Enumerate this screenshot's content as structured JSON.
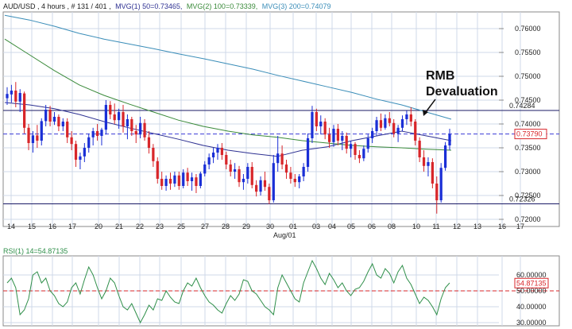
{
  "header": {
    "symbol_info": "AUD/USD , 4 hours , # 131 / 401 ,",
    "ma1": "MVG(1) 50=0.73465,",
    "ma2": "MVG(2) 100=0.73339,",
    "ma3": "MVG(3) 200=0.74079"
  },
  "colors": {
    "bull": "#1a2fd6",
    "bear": "#d8262a",
    "ma50": "#2e3192",
    "ma100": "#3a8a3a",
    "ma200": "#3a8db8",
    "rsi": "#2f8f4a",
    "level": "#1a1a66",
    "dashed_current": "#3a3ad8",
    "dashed_rsi": "#d8262a",
    "grid": "#cfd8e8",
    "axis_text": "#222222"
  },
  "annotation": {
    "line1": "RMB",
    "line2": "Devaluation"
  },
  "chart_data": [
    {
      "type": "candlestick",
      "title": "",
      "xlabel": "",
      "ylabel": "",
      "ylim": [
        0.7185,
        0.7635
      ],
      "grid": true,
      "y_ticks": [
        "0.72000",
        "0.72500",
        "0.73000",
        "0.73500",
        "0.74000",
        "0.74500",
        "0.75000",
        "0.75500",
        "0.76000"
      ],
      "x_tick_labels": [
        "14",
        "15",
        "16",
        "17",
        "20",
        "21",
        "22",
        "23",
        "25",
        "27",
        "28",
        "29",
        "30",
        "01",
        "03",
        "04",
        "05",
        "06",
        "08",
        "10",
        "11",
        "12",
        "13",
        "16",
        "17"
      ],
      "x_sub_label": "Aug/01",
      "levels": [
        {
          "value": 0.74284,
          "label": "0.74284"
        },
        {
          "value": 0.72326,
          "label": "0.72326"
        }
      ],
      "current_price": {
        "value": 0.7379,
        "label": "0.73790"
      },
      "candles": [
        [
          0.7454,
          0.7477,
          0.744,
          0.7463
        ],
        [
          0.7462,
          0.7482,
          0.7445,
          0.747
        ],
        [
          0.747,
          0.7488,
          0.7435,
          0.7447
        ],
        [
          0.7447,
          0.7473,
          0.7425,
          0.7465
        ],
        [
          0.7464,
          0.7468,
          0.738,
          0.7392
        ],
        [
          0.7392,
          0.74,
          0.7345,
          0.736
        ],
        [
          0.736,
          0.7385,
          0.734,
          0.7376
        ],
        [
          0.7376,
          0.7398,
          0.735,
          0.7365
        ],
        [
          0.7365,
          0.7412,
          0.7355,
          0.7406
        ],
        [
          0.7406,
          0.744,
          0.7395,
          0.743
        ],
        [
          0.743,
          0.7438,
          0.7395,
          0.7405
        ],
        [
          0.7405,
          0.7425,
          0.7398,
          0.7415
        ],
        [
          0.7415,
          0.742,
          0.7385,
          0.7395
        ],
        [
          0.7395,
          0.7412,
          0.7385,
          0.7405
        ],
        [
          0.7405,
          0.7412,
          0.736,
          0.7372
        ],
        [
          0.7372,
          0.7385,
          0.7345,
          0.7358
        ],
        [
          0.7358,
          0.7365,
          0.731,
          0.7325
        ],
        [
          0.7325,
          0.734,
          0.7305,
          0.7332
        ],
        [
          0.7332,
          0.736,
          0.732,
          0.735
        ],
        [
          0.735,
          0.738,
          0.734,
          0.7372
        ],
        [
          0.7372,
          0.7392,
          0.7355,
          0.7385
        ],
        [
          0.7385,
          0.74,
          0.7365,
          0.7375
        ],
        [
          0.7375,
          0.7392,
          0.7355,
          0.7388
        ],
        [
          0.7388,
          0.745,
          0.7378,
          0.744
        ],
        [
          0.744,
          0.7448,
          0.741,
          0.742
        ],
        [
          0.742,
          0.7443,
          0.74,
          0.7408
        ],
        [
          0.7408,
          0.7432,
          0.739,
          0.7425
        ],
        [
          0.7425,
          0.744,
          0.7382,
          0.7395
        ],
        [
          0.7395,
          0.742,
          0.7368,
          0.741
        ],
        [
          0.741,
          0.7415,
          0.7375,
          0.7385
        ],
        [
          0.7385,
          0.7398,
          0.736,
          0.7378
        ],
        [
          0.7378,
          0.7415,
          0.737,
          0.7402
        ],
        [
          0.7402,
          0.741,
          0.7365,
          0.7372
        ],
        [
          0.7372,
          0.7385,
          0.7338,
          0.735
        ],
        [
          0.735,
          0.7358,
          0.731,
          0.7322
        ],
        [
          0.7322,
          0.733,
          0.7275,
          0.7285
        ],
        [
          0.7285,
          0.73,
          0.7262,
          0.727
        ],
        [
          0.727,
          0.7292,
          0.726,
          0.7285
        ],
        [
          0.7285,
          0.7298,
          0.7262,
          0.7275
        ],
        [
          0.7275,
          0.73,
          0.7268,
          0.7292
        ],
        [
          0.7292,
          0.73,
          0.7262,
          0.727
        ],
        [
          0.727,
          0.7305,
          0.7265,
          0.7298
        ],
        [
          0.7298,
          0.7308,
          0.727,
          0.728
        ],
        [
          0.728,
          0.7298,
          0.726,
          0.7288
        ],
        [
          0.7288,
          0.7295,
          0.7255,
          0.727
        ],
        [
          0.727,
          0.73,
          0.7265,
          0.7296
        ],
        [
          0.7296,
          0.7322,
          0.729,
          0.7315
        ],
        [
          0.7315,
          0.7338,
          0.7305,
          0.733
        ],
        [
          0.733,
          0.735,
          0.7318,
          0.734
        ],
        [
          0.734,
          0.7358,
          0.7325,
          0.735
        ],
        [
          0.735,
          0.736,
          0.7325,
          0.7335
        ],
        [
          0.7335,
          0.7342,
          0.7305,
          0.7315
        ],
        [
          0.7315,
          0.7325,
          0.729,
          0.73
        ],
        [
          0.73,
          0.7318,
          0.7285,
          0.7305
        ],
        [
          0.7305,
          0.7312,
          0.7268,
          0.7278
        ],
        [
          0.7278,
          0.7295,
          0.7262,
          0.7285
        ],
        [
          0.7285,
          0.7318,
          0.7275,
          0.731
        ],
        [
          0.731,
          0.732,
          0.7265,
          0.7272
        ],
        [
          0.7272,
          0.7282,
          0.7248,
          0.7258
        ],
        [
          0.7258,
          0.729,
          0.725,
          0.7282
        ],
        [
          0.7282,
          0.73,
          0.726,
          0.7268
        ],
        [
          0.7268,
          0.7275,
          0.7232,
          0.724
        ],
        [
          0.724,
          0.7335,
          0.7235,
          0.7318
        ],
        [
          0.7318,
          0.7375,
          0.73,
          0.7338
        ],
        [
          0.7338,
          0.7355,
          0.7305,
          0.7315
        ],
        [
          0.7315,
          0.7325,
          0.7285,
          0.7298
        ],
        [
          0.7298,
          0.731,
          0.7275,
          0.7285
        ],
        [
          0.7285,
          0.7295,
          0.7268,
          0.7278
        ],
        [
          0.7278,
          0.7295,
          0.7265,
          0.729
        ],
        [
          0.729,
          0.7318,
          0.728,
          0.731
        ],
        [
          0.731,
          0.738,
          0.73,
          0.737
        ],
        [
          0.737,
          0.7438,
          0.736,
          0.7425
        ],
        [
          0.7425,
          0.7432,
          0.7385,
          0.7395
        ],
        [
          0.7395,
          0.7418,
          0.7378,
          0.7405
        ],
        [
          0.7405,
          0.7412,
          0.7368,
          0.7378
        ],
        [
          0.7378,
          0.7392,
          0.735,
          0.7362
        ],
        [
          0.7362,
          0.7398,
          0.7352,
          0.739
        ],
        [
          0.739,
          0.74,
          0.7355,
          0.7365
        ],
        [
          0.7365,
          0.7385,
          0.7345,
          0.7375
        ],
        [
          0.7375,
          0.7382,
          0.7338,
          0.7348
        ],
        [
          0.7348,
          0.7365,
          0.733,
          0.7358
        ],
        [
          0.7358,
          0.7362,
          0.7325,
          0.7335
        ],
        [
          0.7335,
          0.7345,
          0.7318,
          0.7328
        ],
        [
          0.7328,
          0.7355,
          0.7322,
          0.7348
        ],
        [
          0.7348,
          0.7378,
          0.734,
          0.737
        ],
        [
          0.737,
          0.7392,
          0.736,
          0.7385
        ],
        [
          0.7385,
          0.7415,
          0.7375,
          0.7408
        ],
        [
          0.7408,
          0.7422,
          0.7385,
          0.7392
        ],
        [
          0.7392,
          0.742,
          0.7388,
          0.7412
        ],
        [
          0.7412,
          0.7425,
          0.7395,
          0.7402
        ],
        [
          0.7402,
          0.741,
          0.7372,
          0.738
        ],
        [
          0.738,
          0.7398,
          0.7362,
          0.7392
        ],
        [
          0.7392,
          0.7418,
          0.7385,
          0.741
        ],
        [
          0.741,
          0.7428,
          0.7398,
          0.742
        ],
        [
          0.742,
          0.7435,
          0.7395,
          0.7405
        ],
        [
          0.7405,
          0.741,
          0.7355,
          0.7365
        ],
        [
          0.7365,
          0.7372,
          0.732,
          0.733
        ],
        [
          0.733,
          0.7345,
          0.73,
          0.7312
        ],
        [
          0.7312,
          0.733,
          0.729,
          0.732
        ],
        [
          0.732,
          0.7328,
          0.7265,
          0.7275
        ],
        [
          0.7275,
          0.729,
          0.7212,
          0.724
        ],
        [
          0.724,
          0.7318,
          0.7235,
          0.7308
        ],
        [
          0.7308,
          0.7362,
          0.7302,
          0.7355
        ],
        [
          0.7355,
          0.739,
          0.7345,
          0.7379
        ]
      ],
      "series": [
        {
          "name": "MVG(1) 50",
          "values": [
            0.7445,
            0.744,
            0.7432,
            0.742,
            0.7405,
            0.7392,
            0.738,
            0.7368,
            0.7355,
            0.7345,
            0.7338,
            0.7332,
            0.7345,
            0.7352,
            0.7365,
            0.7375,
            0.7385,
            0.7375,
            0.7365
          ]
        },
        {
          "name": "MVG(2) 100",
          "values": [
            0.7578,
            0.7545,
            0.7512,
            0.7482,
            0.746,
            0.7442,
            0.7425,
            0.7408,
            0.7395,
            0.7385,
            0.7377,
            0.7372,
            0.7365,
            0.736,
            0.7355,
            0.7352,
            0.735,
            0.7347,
            0.7345
          ]
        },
        {
          "name": "MVG(3) 200",
          "values": [
            0.7628,
            0.7618,
            0.7605,
            0.759,
            0.7578,
            0.7568,
            0.7558,
            0.7547,
            0.7537,
            0.7526,
            0.7515,
            0.7502,
            0.749,
            0.7478,
            0.7466,
            0.7452,
            0.744,
            0.7425,
            0.741
          ]
        }
      ]
    },
    {
      "type": "line",
      "title": "RSI(1) 14=54.87135",
      "ylim": [
        28,
        72
      ],
      "grid": true,
      "y_ticks": [
        "30.00000",
        "40.00000",
        "50.00000",
        "60.00000"
      ],
      "reference_line": 50,
      "current_value": {
        "value": 54.87135,
        "label": "54.87135"
      },
      "series": [
        {
          "name": "RSI(1) 14",
          "values": [
            55,
            58,
            52,
            35,
            38,
            45,
            60,
            62,
            55,
            58,
            50,
            47,
            42,
            40,
            43,
            52,
            55,
            48,
            57,
            65,
            60,
            52,
            45,
            50,
            58,
            55,
            47,
            40,
            38,
            42,
            36,
            30,
            35,
            41,
            38,
            45,
            44,
            50,
            46,
            43,
            42,
            50,
            55,
            53,
            58,
            52,
            47,
            43,
            41,
            38,
            36,
            42,
            47,
            44,
            48,
            57,
            56,
            50,
            48,
            44,
            40,
            38,
            35,
            52,
            60,
            55,
            50,
            45,
            43,
            55,
            62,
            69,
            64,
            58,
            54,
            61,
            57,
            52,
            55,
            50,
            47,
            51,
            52,
            56,
            62,
            67,
            60,
            58,
            64,
            61,
            55,
            62,
            66,
            58,
            54,
            48,
            42,
            46,
            44,
            40,
            35,
            45,
            52,
            55
          ]
        }
      ]
    }
  ]
}
